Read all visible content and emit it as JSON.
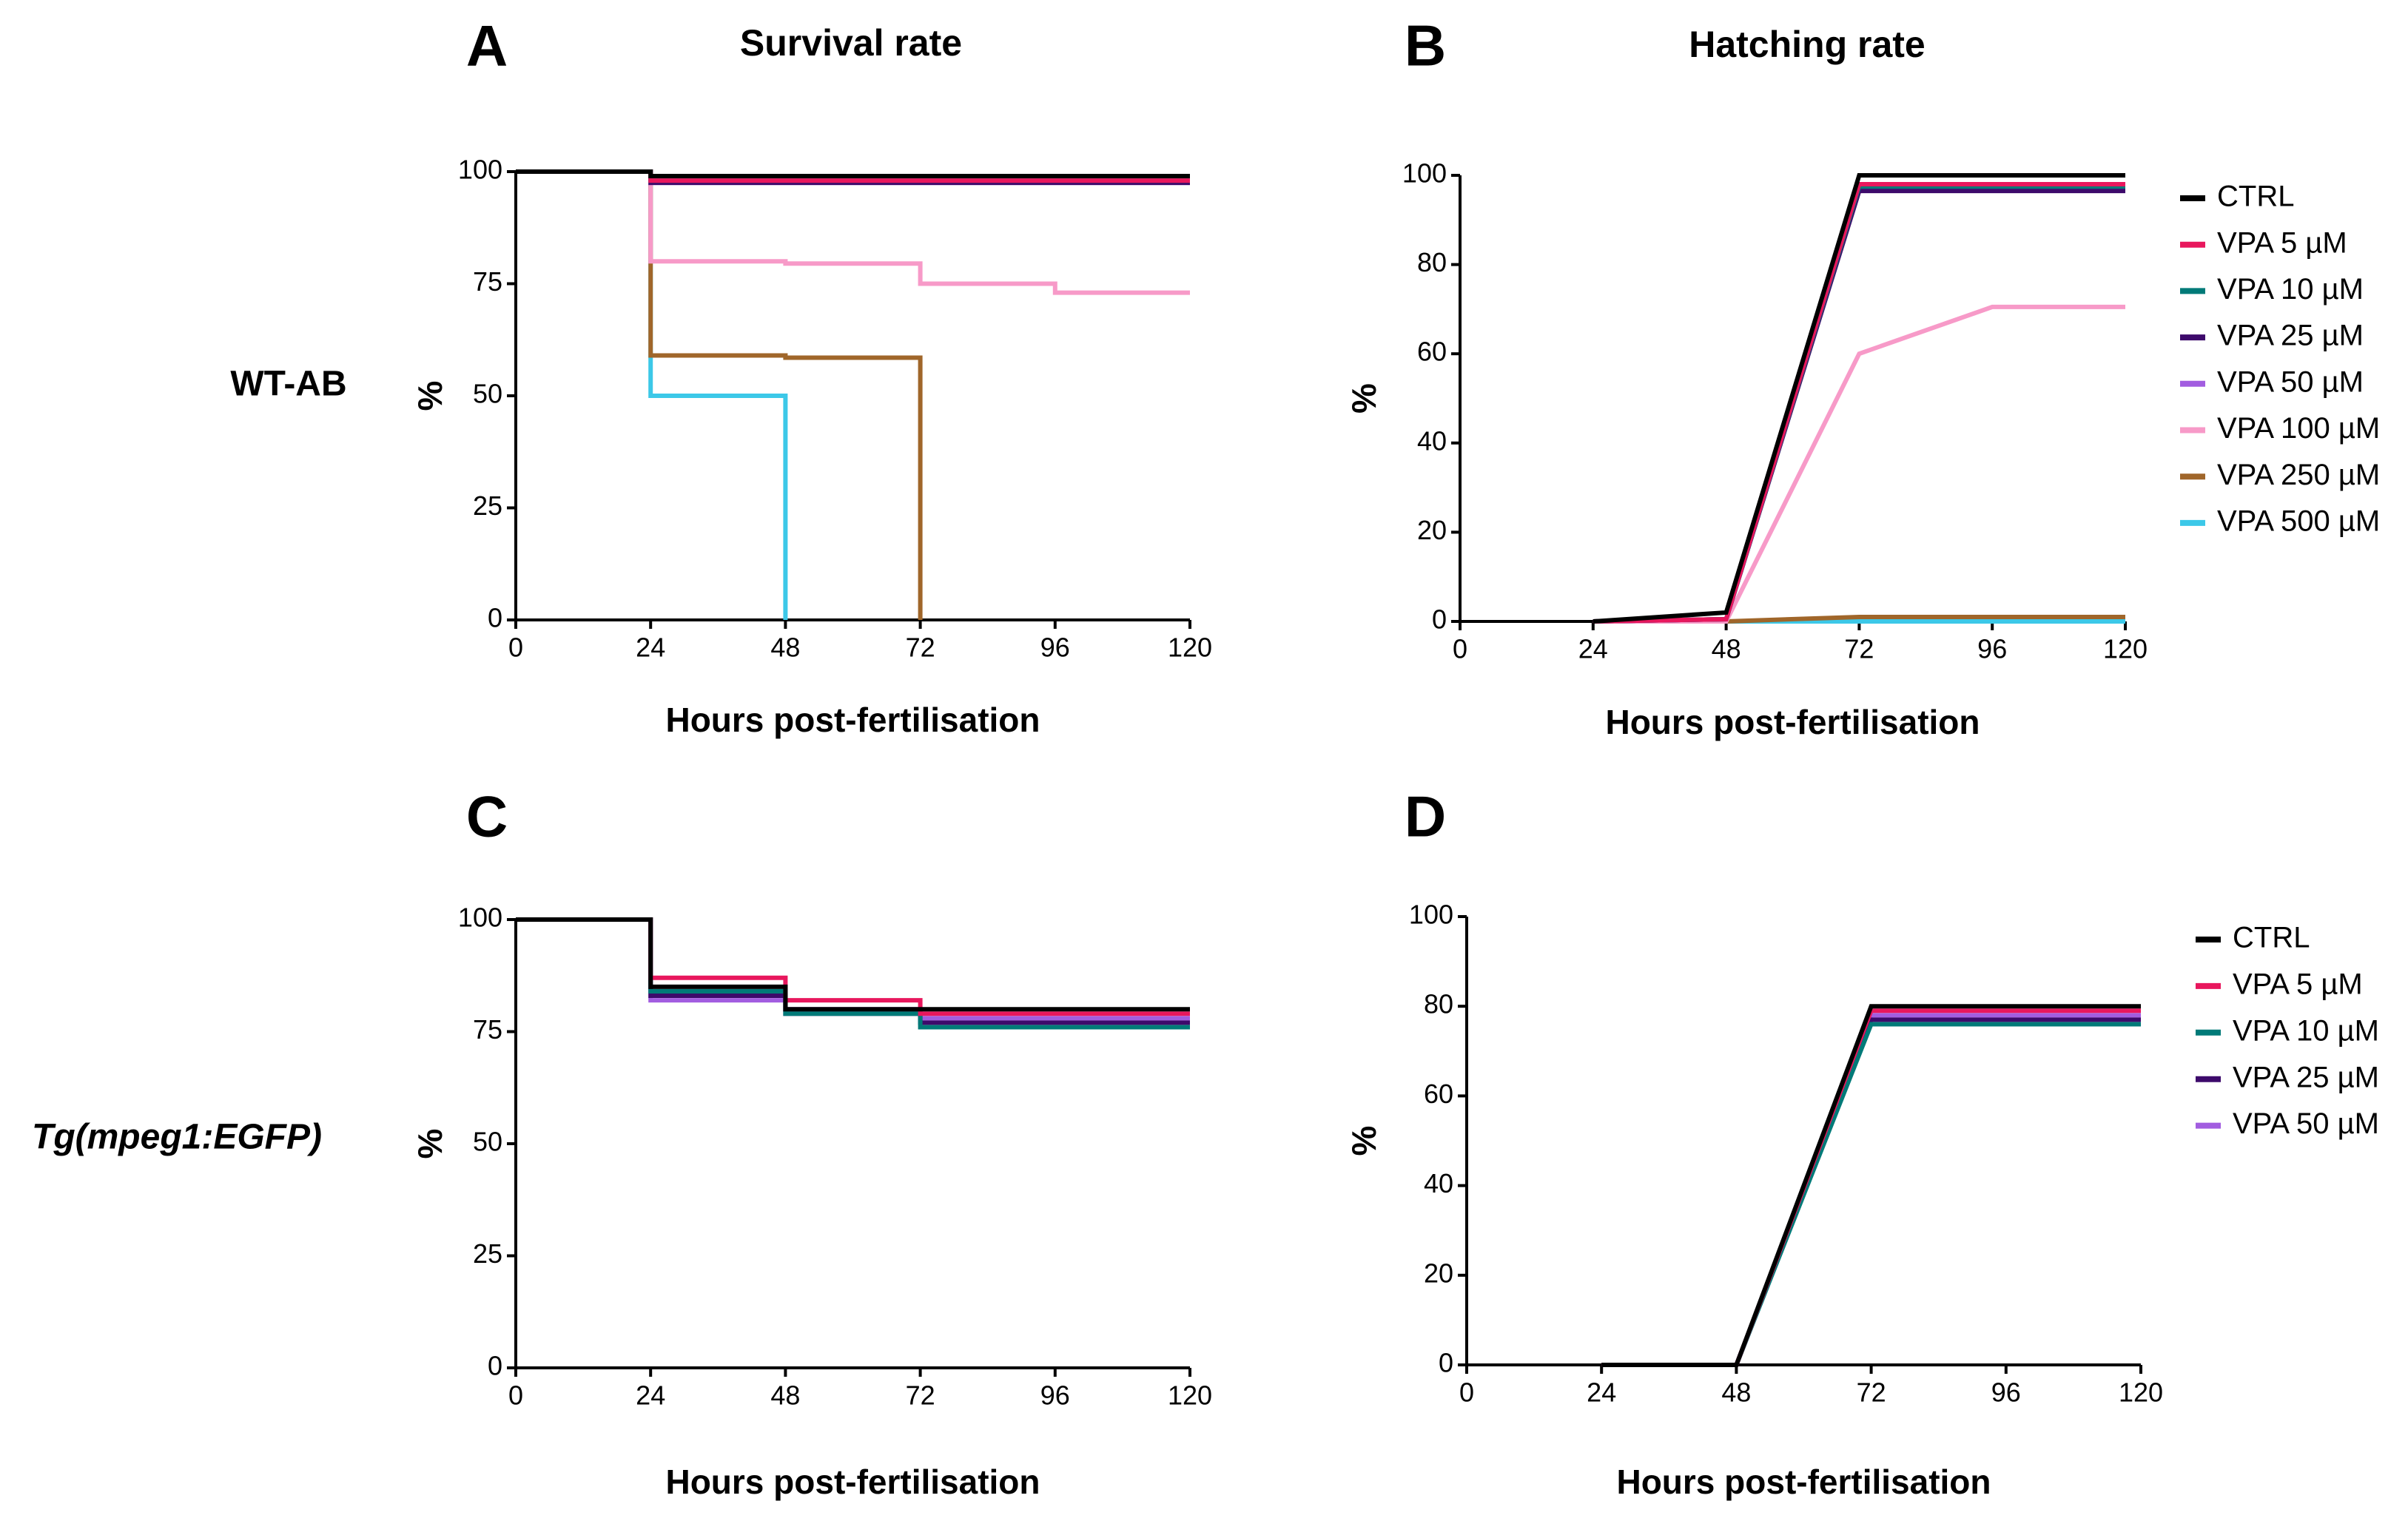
{
  "row_labels": [
    "WT-AB",
    "Tg(mpeg1:EGFP)"
  ],
  "chart_data": [
    {
      "type": "step",
      "panel": "A",
      "title": "Survival rate",
      "xlabel": "Hours post-fertilisation",
      "ylabel": "%",
      "x": [
        0,
        24,
        48,
        72,
        96,
        120
      ],
      "xlim": [
        0,
        120
      ],
      "ylim": [
        0,
        100
      ],
      "xticks": [
        0,
        24,
        48,
        72,
        96,
        120
      ],
      "yticks": [
        0,
        25,
        50,
        75,
        100
      ],
      "series": [
        {
          "color": "#000000",
          "values": [
            100,
            99,
            99,
            99,
            99,
            99
          ]
        },
        {
          "color": "#e8175d",
          "values": [
            100,
            98,
            98,
            98,
            98,
            98
          ]
        },
        {
          "color": "#007a78",
          "values": [
            100,
            98,
            98,
            98,
            98,
            98
          ]
        },
        {
          "color": "#3d0a6b",
          "values": [
            100,
            97.5,
            97.5,
            97.5,
            97.5,
            97.5
          ]
        },
        {
          "color": "#a25de0",
          "values": [
            100,
            97.5,
            97.5,
            97.5,
            97.5,
            97.5
          ]
        },
        {
          "color": "#f79ac8",
          "values": [
            100,
            80,
            79.5,
            75,
            73,
            73
          ]
        },
        {
          "color": "#a0662a",
          "values": [
            100,
            59,
            58.5,
            0,
            null,
            null
          ]
        },
        {
          "color": "#3cc8e8",
          "values": [
            100,
            50,
            0,
            null,
            null,
            null
          ]
        }
      ]
    },
    {
      "type": "line",
      "panel": "B",
      "title": "Hatching rate",
      "xlabel": "Hours post-fertilisation",
      "ylabel": "%",
      "x": [
        24,
        48,
        72,
        96,
        120
      ],
      "xlim": [
        0,
        120
      ],
      "ylim": [
        0,
        100
      ],
      "xticks": [
        0,
        24,
        48,
        72,
        96,
        120
      ],
      "yticks": [
        0,
        20,
        40,
        60,
        80,
        100
      ],
      "legend": "right",
      "series": [
        {
          "name": "CTRL",
          "color": "#000000",
          "values": [
            0,
            2,
            100,
            100,
            100
          ]
        },
        {
          "name": "VPA 5 µM",
          "color": "#e8175d",
          "values": [
            0,
            0.5,
            98,
            98,
            98
          ]
        },
        {
          "name": "VPA 10 µM",
          "color": "#007a78",
          "values": [
            0,
            0.5,
            97.5,
            97.5,
            97.5
          ]
        },
        {
          "name": "VPA 25 µM",
          "color": "#3d0a6b",
          "values": [
            0,
            0.5,
            96.5,
            96.5,
            96.5
          ]
        },
        {
          "name": "VPA 50 µM",
          "color": "#a25de0",
          "values": [
            0,
            0.5,
            97,
            97,
            97
          ]
        },
        {
          "name": "VPA 100 µM",
          "color": "#f79ac8",
          "values": [
            0,
            0,
            60,
            70.5,
            70.5
          ]
        },
        {
          "name": "VPA 250 µM",
          "color": "#a0662a",
          "values": [
            0,
            0,
            1,
            1,
            1
          ]
        },
        {
          "name": "VPA 500 µM",
          "color": "#3cc8e8",
          "values": [
            0,
            0,
            0,
            0,
            0
          ]
        }
      ]
    },
    {
      "type": "step",
      "panel": "C",
      "xlabel": "Hours post-fertilisation",
      "ylabel": "%",
      "x": [
        0,
        24,
        48,
        72,
        96,
        120
      ],
      "xlim": [
        0,
        120
      ],
      "ylim": [
        0,
        100
      ],
      "xticks": [
        0,
        24,
        48,
        72,
        96,
        120
      ],
      "yticks": [
        0,
        25,
        50,
        75,
        100
      ],
      "series": [
        {
          "color": "#000000",
          "values": [
            100,
            85,
            80,
            80,
            80,
            80
          ]
        },
        {
          "color": "#e8175d",
          "values": [
            100,
            87,
            82,
            79,
            79,
            79
          ]
        },
        {
          "color": "#007a78",
          "values": [
            100,
            84,
            79,
            76,
            76,
            76
          ]
        },
        {
          "color": "#3d0a6b",
          "values": [
            100,
            83,
            79,
            77,
            77,
            77
          ]
        },
        {
          "color": "#a25de0",
          "values": [
            100,
            82,
            80,
            78,
            78,
            78
          ]
        }
      ]
    },
    {
      "type": "line",
      "panel": "D",
      "xlabel": "Hours post-fertilisation",
      "ylabel": "%",
      "x": [
        24,
        48,
        72,
        96,
        120
      ],
      "xlim": [
        0,
        120
      ],
      "ylim": [
        0,
        100
      ],
      "xticks": [
        0,
        24,
        48,
        72,
        96,
        120
      ],
      "yticks": [
        0,
        20,
        40,
        60,
        80,
        100
      ],
      "legend": "right",
      "series": [
        {
          "name": "CTRL",
          "color": "#000000",
          "values": [
            0,
            0,
            80,
            80,
            80
          ]
        },
        {
          "name": "VPA 5 µM",
          "color": "#e8175d",
          "values": [
            0,
            0,
            79,
            79,
            79
          ]
        },
        {
          "name": "VPA 10 µM",
          "color": "#007a78",
          "values": [
            0,
            0,
            76,
            76,
            76
          ]
        },
        {
          "name": "VPA 25 µM",
          "color": "#3d0a6b",
          "values": [
            0,
            0,
            77,
            77,
            77
          ]
        },
        {
          "name": "VPA 50 µM",
          "color": "#a25de0",
          "values": [
            0,
            0,
            78,
            78,
            78
          ]
        }
      ]
    }
  ]
}
